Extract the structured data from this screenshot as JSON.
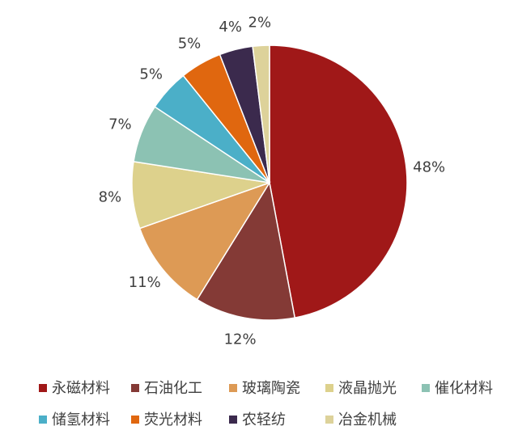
{
  "chart_data": {
    "type": "pie",
    "categories": [
      "永磁材料",
      "石油化工",
      "玻璃陶瓷",
      "液晶抛光",
      "催化材料",
      "储氢材料",
      "荧光材料",
      "农轻纺",
      "冶金机械"
    ],
    "values": [
      48,
      12,
      11,
      8,
      7,
      5,
      5,
      4,
      2
    ],
    "value_labels": [
      "48%",
      "12%",
      "11%",
      "8%",
      "7%",
      "5%",
      "5%",
      "4%",
      "2%"
    ],
    "colors": [
      "#a01818",
      "#843a36",
      "#dd9a55",
      "#ddd18c",
      "#8cc2b3",
      "#4bafc8",
      "#e0670f",
      "#3b2a4d",
      "#ddd29a"
    ],
    "legend": "bottom"
  }
}
